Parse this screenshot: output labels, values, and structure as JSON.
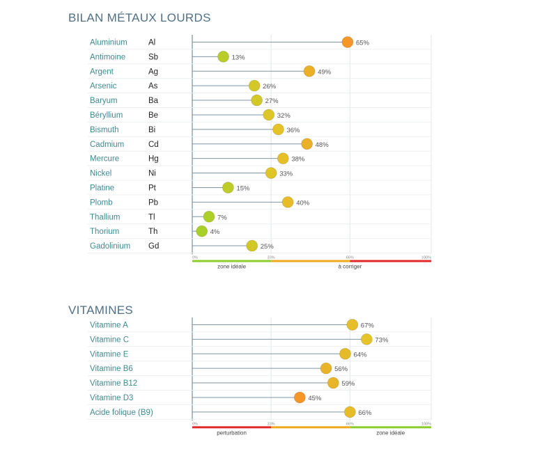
{
  "sections": [
    {
      "title": "BILAN MÉTAUX LOURDS",
      "chart_data": {
        "type": "lollipop",
        "orientation": "horizontal",
        "xlim": [
          0,
          100
        ],
        "ticks": [
          "0%",
          "33%",
          "66%",
          "100%"
        ],
        "rows": [
          {
            "name": "Aluminium",
            "symbol": "Al",
            "value": 65,
            "label": "65%"
          },
          {
            "name": "Antimoine",
            "symbol": "Sb",
            "value": 13,
            "label": "13%"
          },
          {
            "name": "Argent",
            "symbol": "Ag",
            "value": 49,
            "label": "49%"
          },
          {
            "name": "Arsenic",
            "symbol": "As",
            "value": 26,
            "label": "26%"
          },
          {
            "name": "Baryum",
            "symbol": "Ba",
            "value": 27,
            "label": "27%"
          },
          {
            "name": "Béryllium",
            "symbol": "Be",
            "value": 32,
            "label": "32%"
          },
          {
            "name": "Bismuth",
            "symbol": "Bi",
            "value": 36,
            "label": "36%"
          },
          {
            "name": "Cadmium",
            "symbol": "Cd",
            "value": 48,
            "label": "48%"
          },
          {
            "name": "Mercure",
            "symbol": "Hg",
            "value": 38,
            "label": "38%"
          },
          {
            "name": "Nickel",
            "symbol": "Ni",
            "value": 33,
            "label": "33%"
          },
          {
            "name": "Platine",
            "symbol": "Pt",
            "value": 15,
            "label": "15%"
          },
          {
            "name": "Plomb",
            "symbol": "Pb",
            "value": 40,
            "label": "40%"
          },
          {
            "name": "Thallium",
            "symbol": "Tl",
            "value": 7,
            "label": "7%"
          },
          {
            "name": "Thorium",
            "symbol": "Th",
            "value": 4,
            "label": "4%"
          },
          {
            "name": "Gadolinium",
            "symbol": "Gd",
            "value": 25,
            "label": "25%"
          }
        ],
        "zone_bar": [
          {
            "from": 0,
            "to": 33,
            "color": "#8ccc2c"
          },
          {
            "from": 33,
            "to": 66,
            "color": "#f0a81e"
          },
          {
            "from": 66,
            "to": 100,
            "color": "#e02a2a"
          }
        ],
        "zone_labels": [
          {
            "text": "zone idéale",
            "at": 16.5
          },
          {
            "text": "à corriger",
            "at": 66
          }
        ],
        "color_scale": "low=green, high=orange"
      }
    },
    {
      "title": "VITAMINES",
      "chart_data": {
        "type": "lollipop",
        "orientation": "horizontal",
        "xlim": [
          0,
          100
        ],
        "ticks": [
          "0%",
          "33%",
          "66%",
          "100%"
        ],
        "rows": [
          {
            "name": "Vitamine A",
            "symbol": "",
            "value": 67,
            "label": "67%"
          },
          {
            "name": "Vitamine C",
            "symbol": "",
            "value": 73,
            "label": "73%"
          },
          {
            "name": "Vitamine E",
            "symbol": "",
            "value": 64,
            "label": "64%"
          },
          {
            "name": "Vitamine B6",
            "symbol": "",
            "value": 56,
            "label": "56%"
          },
          {
            "name": "Vitamine B12",
            "symbol": "",
            "value": 59,
            "label": "59%"
          },
          {
            "name": "Vitamine D3",
            "symbol": "",
            "value": 45,
            "label": "45%"
          },
          {
            "name": "Acide folique (B9)",
            "symbol": "",
            "value": 66,
            "label": "66%"
          }
        ],
        "zone_bar": [
          {
            "from": 0,
            "to": 33,
            "color": "#e02a2a"
          },
          {
            "from": 33,
            "to": 66,
            "color": "#f0a81e"
          },
          {
            "from": 66,
            "to": 100,
            "color": "#8ccc2c"
          }
        ],
        "zone_labels": [
          {
            "text": "perturbation",
            "at": 16.5
          },
          {
            "text": "zone idéale",
            "at": 83
          }
        ],
        "color_scale": "low=orange, high=yellow"
      }
    }
  ]
}
